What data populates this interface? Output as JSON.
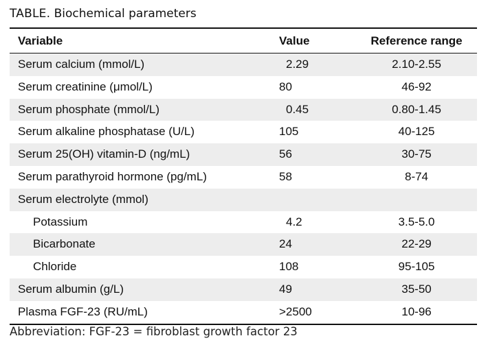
{
  "caption": {
    "label": "TABLE.",
    "title": "Biochemical parameters"
  },
  "table": {
    "headers": [
      "Variable",
      "Value",
      "Reference range"
    ],
    "rows": [
      {
        "variable": "Serum calcium (mmol/L)",
        "value": "2.29",
        "reference": "2.10-2.55",
        "indent": false,
        "shaded": true,
        "value_offset": 10
      },
      {
        "variable": "Serum creatinine (μmol/L)",
        "value": "80",
        "reference": "46-92",
        "indent": false,
        "shaded": false,
        "value_offset": 0
      },
      {
        "variable": "Serum phosphate (mmol/L)",
        "value": "0.45",
        "reference": "0.80-1.45",
        "indent": false,
        "shaded": true,
        "value_offset": 10
      },
      {
        "variable": "Serum alkaline phosphatase (U/L)",
        "value": "105",
        "reference": "40-125",
        "indent": false,
        "shaded": false,
        "value_offset": 0
      },
      {
        "variable": "Serum 25(OH) vitamin-D (ng/mL)",
        "value": "56",
        "reference": "30-75",
        "indent": false,
        "shaded": true,
        "value_offset": 0
      },
      {
        "variable": "Serum parathyroid hormone (pg/mL)",
        "value": "58",
        "reference": "8-74",
        "indent": false,
        "shaded": false,
        "value_offset": 0
      },
      {
        "variable": "Serum electrolyte (mmol)",
        "value": "",
        "reference": "",
        "indent": false,
        "shaded": true,
        "value_offset": 0
      },
      {
        "variable": "Potassium",
        "value": "4.2",
        "reference": "3.5-5.0",
        "indent": true,
        "shaded": false,
        "value_offset": 10
      },
      {
        "variable": "Bicarbonate",
        "value": "24",
        "reference": "22-29",
        "indent": true,
        "shaded": true,
        "value_offset": 0
      },
      {
        "variable": "Chloride",
        "value": "108",
        "reference": "95-105",
        "indent": true,
        "shaded": false,
        "value_offset": 0
      },
      {
        "variable": "Serum albumin (g/L)",
        "value": "49",
        "reference": "35-50",
        "indent": false,
        "shaded": true,
        "value_offset": 0
      },
      {
        "variable": "Plasma FGF-23 (RU/mL)",
        "value": ">2500",
        "reference": "10-96",
        "indent": false,
        "shaded": false,
        "value_offset": 0
      }
    ]
  },
  "footnote": "Abbreviation: FGF-23 = fibroblast growth factor 23",
  "colors": {
    "shaded_row": "#ededed",
    "rule": "#111111"
  }
}
